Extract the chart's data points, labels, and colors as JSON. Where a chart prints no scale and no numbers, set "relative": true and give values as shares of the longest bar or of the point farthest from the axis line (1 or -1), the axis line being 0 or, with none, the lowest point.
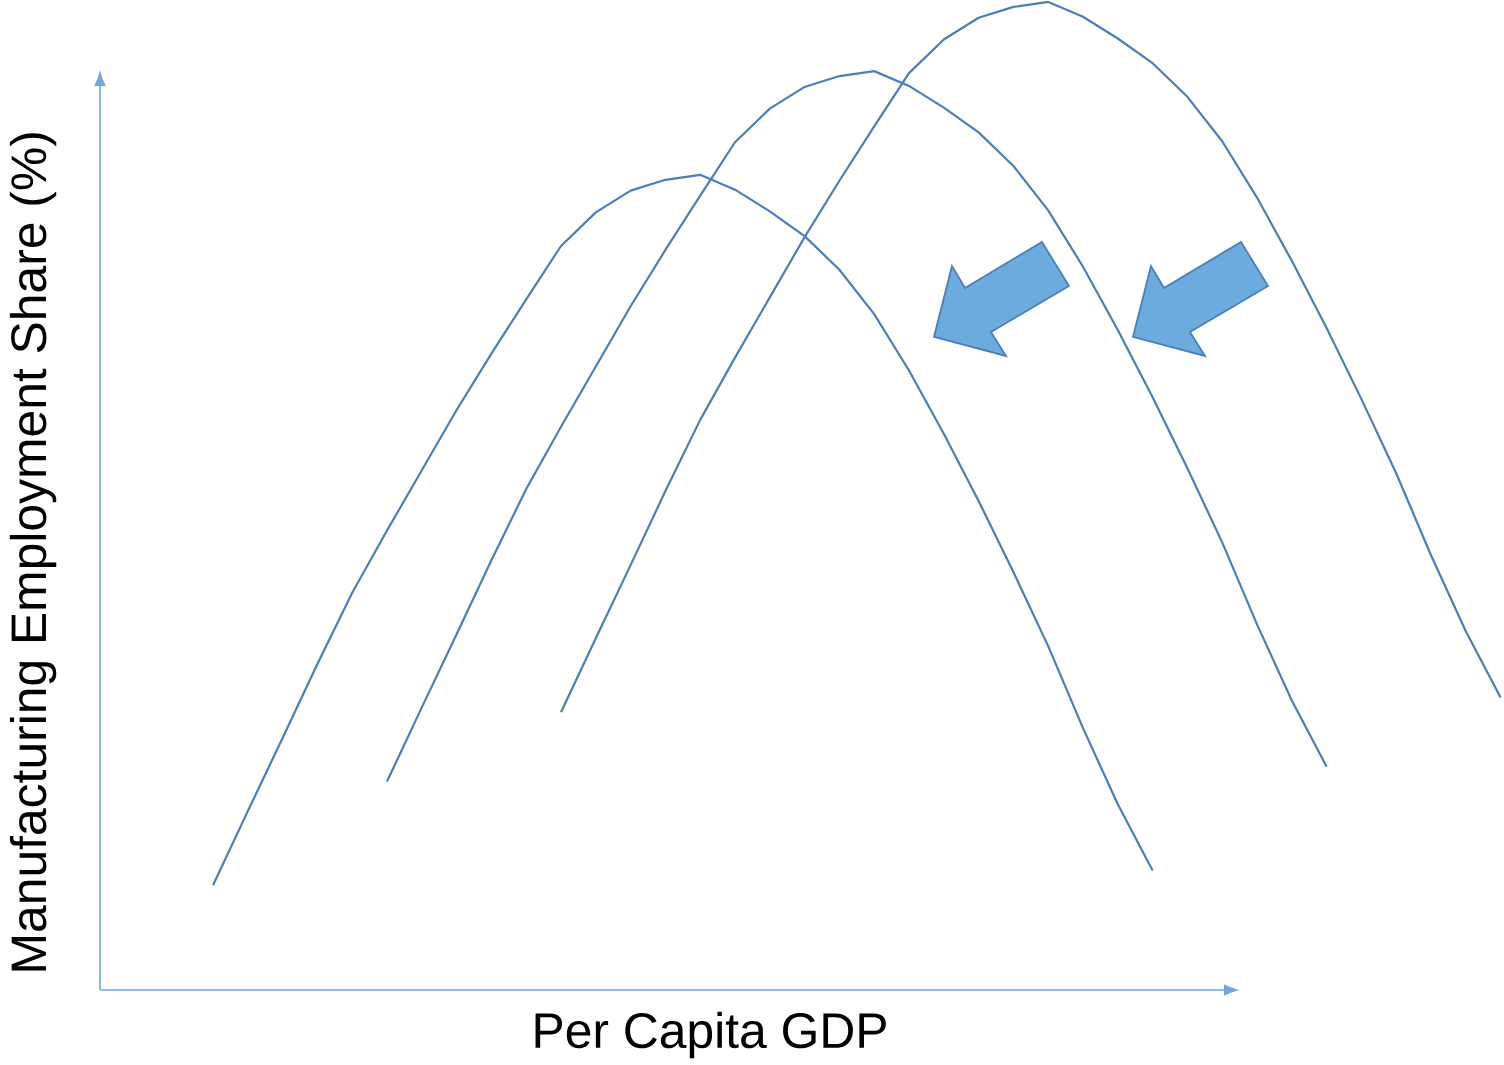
{
  "chart_data": {
    "type": "line",
    "relative": true,
    "xlabel": "Per Capita GDP",
    "ylabel": "Manufacturing Employment Share (%)",
    "categories": [
      null,
      null,
      null,
      null,
      null,
      null,
      null,
      null,
      null,
      null,
      null,
      null,
      null,
      null,
      null,
      null,
      null,
      null,
      null,
      null,
      null,
      null,
      null,
      null,
      null,
      null,
      null,
      null,
      null,
      null,
      null,
      null,
      null,
      null,
      null,
      null,
      null,
      null
    ],
    "series": [
      {
        "color": "#4a7ebb",
        "values": [
          0.106,
          0.181,
          0.255,
          0.33,
          0.402,
          0.465,
          0.526,
          0.587,
          0.644,
          0.699,
          0.753,
          0.787,
          0.809,
          0.82,
          0.825,
          0.81,
          0.788,
          0.763,
          0.729,
          0.684,
          0.627,
          0.563,
          0.495,
          0.423,
          0.348,
          0.265,
          0.188,
          0.121,
          null,
          null,
          null,
          null,
          null,
          null,
          null,
          null,
          null,
          null
        ]
      },
      {
        "color": "#4a7ebb",
        "values": [
          null,
          null,
          null,
          null,
          null,
          0.211,
          0.286,
          0.36,
          0.435,
          0.507,
          0.57,
          0.631,
          0.692,
          0.749,
          0.804,
          0.858,
          0.892,
          0.914,
          0.925,
          0.93,
          0.915,
          0.893,
          0.868,
          0.834,
          0.789,
          0.732,
          0.668,
          0.6,
          0.528,
          0.453,
          0.37,
          0.293,
          0.226,
          null,
          null,
          null,
          null,
          null
        ]
      },
      {
        "color": "#4a7ebb",
        "values": [
          null,
          null,
          null,
          null,
          null,
          null,
          null,
          null,
          null,
          null,
          0.281,
          0.356,
          0.43,
          0.505,
          0.577,
          0.64,
          0.701,
          0.762,
          0.819,
          0.874,
          0.928,
          0.962,
          0.984,
          0.995,
          1.0,
          0.985,
          0.963,
          0.938,
          0.904,
          0.859,
          0.802,
          0.738,
          0.67,
          0.598,
          0.523,
          0.44,
          0.363,
          0.296
        ]
      }
    ]
  }
}
